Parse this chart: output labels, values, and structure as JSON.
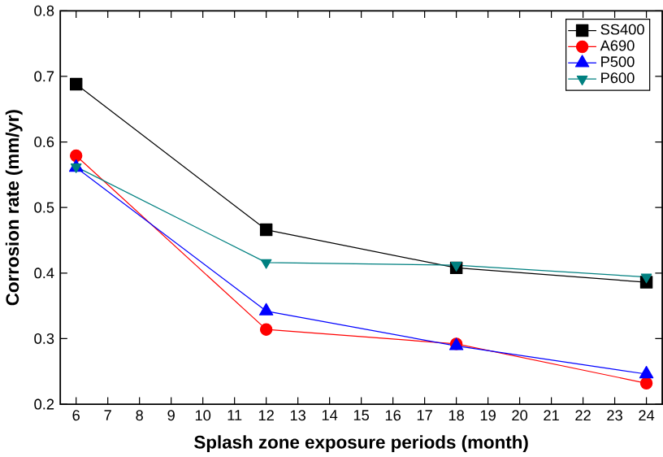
{
  "chart_data": {
    "type": "line",
    "xlabel": "Splash zone exposure periods (month)",
    "ylabel": "Corrosion rate (mm/yr)",
    "x": [
      6,
      12,
      18,
      24
    ],
    "series": [
      {
        "name": "SS400",
        "color": "#000000",
        "marker": "square",
        "values": [
          0.688,
          0.466,
          0.408,
          0.386
        ]
      },
      {
        "name": "A690",
        "color": "#ff0000",
        "marker": "circle",
        "values": [
          0.579,
          0.314,
          0.292,
          0.232
        ]
      },
      {
        "name": "P500",
        "color": "#0000ff",
        "marker": "triangle",
        "values": [
          0.561,
          0.342,
          0.289,
          0.246
        ]
      },
      {
        "name": "P600",
        "color": "#008080",
        "marker": "triangle-down",
        "values": [
          0.562,
          0.416,
          0.412,
          0.394
        ]
      }
    ],
    "xlim": [
      5.5,
      24.5
    ],
    "ylim": [
      0.2,
      0.8
    ],
    "xticks": [
      6,
      7,
      8,
      9,
      10,
      11,
      12,
      13,
      14,
      15,
      16,
      17,
      18,
      19,
      20,
      21,
      22,
      23,
      24
    ],
    "yticks": [
      0.2,
      0.3,
      0.4,
      0.5,
      0.6,
      0.7,
      0.8
    ],
    "legend": "top right",
    "grid": false,
    "line_style": "solid"
  }
}
